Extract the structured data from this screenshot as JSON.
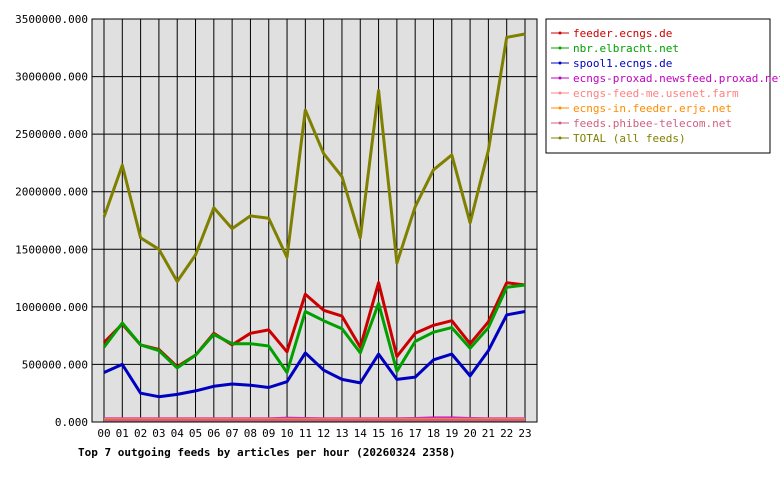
{
  "chart_data": {
    "type": "line",
    "title": "Top 7 outgoing feeds by articles per hour (20260324 2358)",
    "xlabel": "",
    "ylabel": "",
    "ylim": [
      0,
      3500000
    ],
    "y_ticks": [
      "0.000",
      "500000.000",
      "1000000.000",
      "1500000.000",
      "2000000.000",
      "2500000.000",
      "3000000.000",
      "3500000.000"
    ],
    "categories": [
      "00",
      "01",
      "02",
      "03",
      "04",
      "05",
      "06",
      "07",
      "08",
      "09",
      "10",
      "11",
      "12",
      "13",
      "14",
      "15",
      "16",
      "17",
      "18",
      "19",
      "20",
      "21",
      "22",
      "23"
    ],
    "grid": true,
    "legend_position": "right",
    "series": [
      {
        "name": "feeder.ecngs.de",
        "color": "#cc0000",
        "values": [
          690000,
          850000,
          670000,
          630000,
          480000,
          580000,
          770000,
          670000,
          770000,
          800000,
          610000,
          1110000,
          970000,
          920000,
          650000,
          1210000,
          570000,
          770000,
          840000,
          880000,
          680000,
          870000,
          1210000,
          1190000
        ]
      },
      {
        "name": "nbr.elbracht.net",
        "color": "#00a000",
        "values": [
          650000,
          860000,
          670000,
          620000,
          470000,
          580000,
          760000,
          680000,
          680000,
          660000,
          430000,
          960000,
          880000,
          810000,
          600000,
          1030000,
          440000,
          700000,
          780000,
          820000,
          640000,
          820000,
          1170000,
          1190000
        ]
      },
      {
        "name": "spool1.ecngs.de",
        "color": "#0000c0",
        "values": [
          430000,
          500000,
          250000,
          220000,
          240000,
          270000,
          310000,
          330000,
          320000,
          300000,
          350000,
          600000,
          450000,
          370000,
          340000,
          590000,
          370000,
          390000,
          540000,
          590000,
          400000,
          620000,
          930000,
          960000
        ]
      },
      {
        "name": "ecngs-proxad.newsfeed.proxad.net",
        "color": "#c000c0",
        "values": [
          28000,
          28000,
          28000,
          28000,
          28000,
          28000,
          28000,
          28000,
          28000,
          28000,
          32000,
          30000,
          28000,
          28000,
          28000,
          28000,
          28000,
          30000,
          35000,
          35000,
          30000,
          28000,
          28000,
          28000
        ]
      },
      {
        "name": "ecngs-feed-me.usenet.farm",
        "color": "#ff8080",
        "values": [
          25000,
          25000,
          25000,
          25000,
          25000,
          25000,
          25000,
          25000,
          25000,
          25000,
          25000,
          25000,
          25000,
          25000,
          25000,
          25000,
          25000,
          25000,
          25000,
          25000,
          25000,
          25000,
          25000,
          25000
        ]
      },
      {
        "name": "ecngs-in.feeder.erje.net",
        "color": "#ff8c00",
        "values": [
          20000,
          20000,
          20000,
          20000,
          20000,
          20000,
          20000,
          20000,
          20000,
          20000,
          20000,
          20000,
          20000,
          20000,
          20000,
          20000,
          20000,
          20000,
          20000,
          20000,
          20000,
          20000,
          20000,
          20000
        ]
      },
      {
        "name": "feeds.phibee-telecom.net",
        "color": "#d06080",
        "values": [
          15000,
          15000,
          15000,
          15000,
          15000,
          15000,
          15000,
          15000,
          15000,
          15000,
          15000,
          15000,
          15000,
          15000,
          15000,
          15000,
          15000,
          15000,
          15000,
          15000,
          15000,
          15000,
          15000,
          15000
        ]
      },
      {
        "name": "TOTAL (all feeds)",
        "color": "#808000",
        "values": [
          1780000,
          2230000,
          1600000,
          1500000,
          1220000,
          1450000,
          1860000,
          1680000,
          1790000,
          1770000,
          1430000,
          2710000,
          2330000,
          2130000,
          1600000,
          2880000,
          1380000,
          1870000,
          2190000,
          2320000,
          1730000,
          2360000,
          3340000,
          3370000
        ]
      }
    ]
  }
}
